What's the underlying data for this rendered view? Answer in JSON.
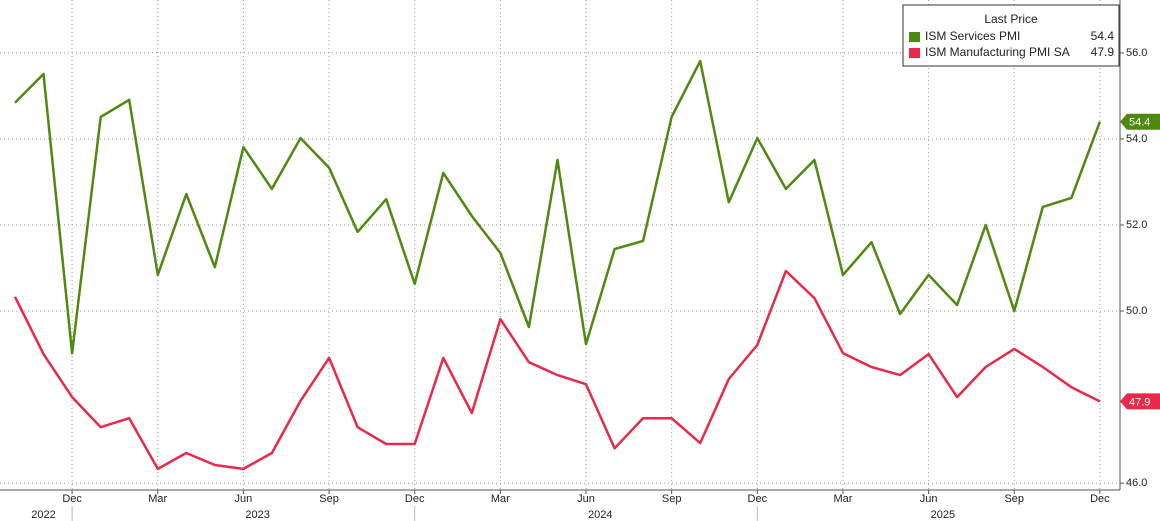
{
  "chart_data": {
    "type": "line",
    "legend_title": "Last Price",
    "x": [
      "2022-10",
      "2022-11",
      "2022-12",
      "2023-01",
      "2023-02",
      "2023-03",
      "2023-04",
      "2023-05",
      "2023-06",
      "2023-07",
      "2023-08",
      "2023-09",
      "2023-10",
      "2023-11",
      "2023-12",
      "2024-01",
      "2024-02",
      "2024-03",
      "2024-04",
      "2024-05",
      "2024-06",
      "2024-07",
      "2024-08",
      "2024-09",
      "2024-10",
      "2024-11",
      "2024-12",
      "2025-01",
      "2025-02",
      "2025-03",
      "2025-04",
      "2025-05",
      "2025-06",
      "2025-07",
      "2025-08",
      "2025-09",
      "2025-10",
      "2025-11",
      "2025-12"
    ],
    "series": [
      {
        "name": "ISM Services PMI",
        "color": "#4f8a10",
        "values": [
          54.84,
          55.51,
          49.02,
          54.51,
          54.91,
          50.84,
          52.72,
          51.02,
          53.81,
          52.84,
          54.02,
          53.33,
          51.84,
          52.6,
          50.63,
          53.21,
          52.21,
          51.35,
          49.63,
          53.51,
          49.23,
          51.44,
          51.63,
          54.51,
          55.81,
          52.53,
          54.02,
          52.84,
          53.51,
          50.84,
          51.6,
          49.93,
          50.84,
          50.14,
          52.0,
          50.0,
          52.42,
          52.63,
          54.4
        ]
      },
      {
        "name": "ISM Manufacturing PMI SA",
        "color": "#e8294a",
        "values": [
          50.33,
          49.0,
          48.0,
          47.3,
          47.51,
          46.33,
          46.7,
          46.42,
          46.33,
          46.7,
          47.91,
          48.91,
          47.3,
          46.91,
          46.91,
          48.91,
          47.63,
          49.81,
          48.81,
          48.51,
          48.3,
          46.81,
          47.51,
          47.51,
          46.93,
          48.42,
          49.21,
          50.93,
          50.3,
          49.02,
          48.7,
          48.51,
          49.0,
          48.0,
          48.7,
          49.12,
          48.7,
          48.23,
          47.9
        ]
      }
    ],
    "ylim": [
      45.84,
      57.23
    ],
    "yticks": [
      {
        "value": 46,
        "label": "46.0"
      },
      {
        "value": 50,
        "label": "50.0"
      },
      {
        "value": 52,
        "label": "52.0"
      },
      {
        "value": 54,
        "label": "54.0"
      },
      {
        "value": 56,
        "label": "56.0"
      }
    ],
    "xticks": [
      {
        "value": "2022-12",
        "label": "Dec"
      },
      {
        "value": "2023-03",
        "label": "Mar"
      },
      {
        "value": "2023-06",
        "label": "Jun"
      },
      {
        "value": "2023-09",
        "label": "Sep"
      },
      {
        "value": "2023-12",
        "label": "Dec"
      },
      {
        "value": "2024-03",
        "label": "Mar"
      },
      {
        "value": "2024-06",
        "label": "Jun"
      },
      {
        "value": "2024-09",
        "label": "Sep"
      },
      {
        "value": "2024-12",
        "label": "Dec"
      },
      {
        "value": "2025-03",
        "label": "Mar"
      },
      {
        "value": "2025-06",
        "label": "Jun"
      },
      {
        "value": "2025-09",
        "label": "Sep"
      },
      {
        "value": "2025-12",
        "label": "Dec"
      }
    ],
    "years": [
      "2022",
      "2023",
      "2024",
      "2025"
    ],
    "grid": true,
    "legend": "upper right"
  }
}
